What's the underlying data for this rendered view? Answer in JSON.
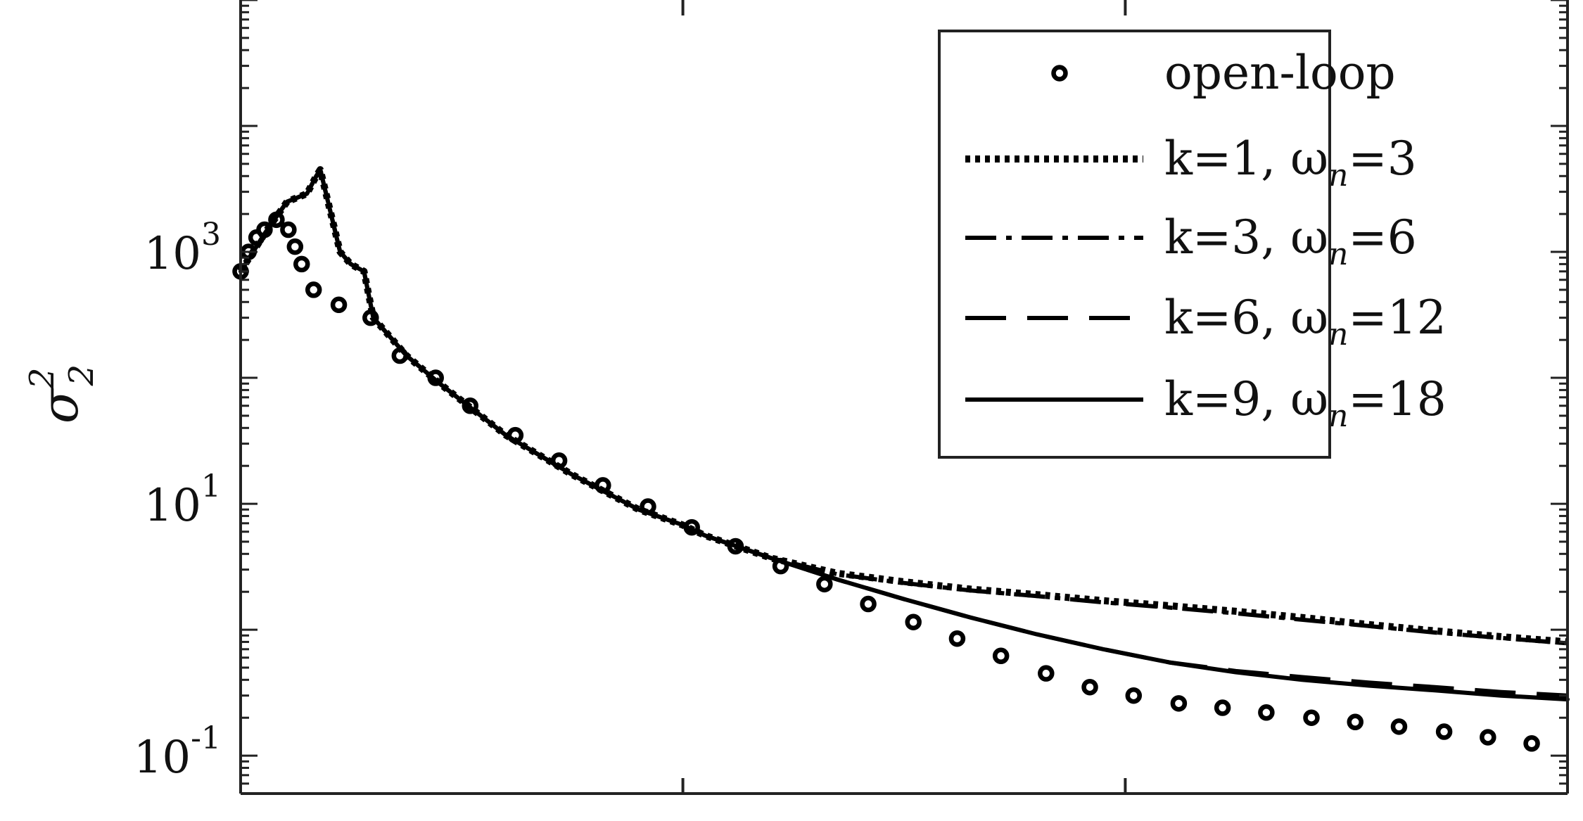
{
  "chart_data": {
    "type": "line",
    "title": "",
    "xlabel": "",
    "ylabel": "σ",
    "ylabel_superscript": "2",
    "ylabel_subscript": "2",
    "yscale": "log",
    "xlim": [
      0,
      1
    ],
    "ylim": [
      0.05,
      100000
    ],
    "xticks": [
      0,
      0.3333,
      0.6667,
      1
    ],
    "yticks": [
      {
        "value": 1000,
        "base": "10",
        "exp": "3"
      },
      {
        "value": 10,
        "base": "10",
        "exp": "1"
      },
      {
        "value": 0.1,
        "base": "10",
        "exp": "-1"
      }
    ],
    "grid": false,
    "legend_position": "top-right",
    "series": [
      {
        "name": "open-loop",
        "style": "markers",
        "x": [
          0.0,
          0.006,
          0.012,
          0.018,
          0.027,
          0.036,
          0.041,
          0.046,
          0.055,
          0.074,
          0.098,
          0.12,
          0.147,
          0.173,
          0.207,
          0.24,
          0.273,
          0.307,
          0.34,
          0.373,
          0.407,
          0.44,
          0.473,
          0.507,
          0.54,
          0.573,
          0.607,
          0.64,
          0.673,
          0.707,
          0.74,
          0.773,
          0.807,
          0.84,
          0.873,
          0.907,
          0.94,
          0.973
        ],
        "y": [
          700,
          1000,
          1300,
          1500,
          1800,
          1500,
          1100,
          800,
          500,
          380,
          300,
          150,
          100,
          60,
          35,
          22,
          14,
          9.5,
          6.5,
          4.6,
          3.2,
          2.3,
          1.6,
          1.15,
          0.85,
          0.62,
          0.45,
          0.35,
          0.3,
          0.26,
          0.24,
          0.22,
          0.2,
          0.185,
          0.17,
          0.155,
          0.14,
          0.125
        ]
      },
      {
        "name": "k=1, ω",
        "subscript": "n",
        "value_text": "=3",
        "style": "dotted",
        "x": [
          0.0,
          0.02,
          0.035,
          0.05,
          0.057,
          0.06,
          0.075,
          0.083,
          0.093,
          0.1,
          0.125,
          0.15,
          0.2,
          0.25,
          0.3,
          0.333,
          0.35,
          0.4,
          0.45,
          0.5,
          0.55,
          0.6,
          0.65,
          0.7,
          0.75,
          0.8,
          0.85,
          0.9,
          0.95,
          1.0
        ],
        "y": [
          700,
          1500,
          2500,
          2900,
          4000,
          4500,
          1000,
          800,
          700,
          300,
          150,
          90,
          35,
          17,
          9,
          6.8,
          5.6,
          3.7,
          2.8,
          2.4,
          2.1,
          1.9,
          1.7,
          1.55,
          1.4,
          1.25,
          1.1,
          0.98,
          0.88,
          0.8
        ]
      },
      {
        "name": "k=3, ω",
        "subscript": "n",
        "value_text": "=6",
        "style": "dashdot",
        "x": [
          0.0,
          0.02,
          0.035,
          0.05,
          0.057,
          0.06,
          0.075,
          0.083,
          0.093,
          0.1,
          0.125,
          0.15,
          0.2,
          0.25,
          0.3,
          0.333,
          0.35,
          0.4,
          0.45,
          0.5,
          0.55,
          0.6,
          0.65,
          0.7,
          0.75,
          0.8,
          0.85,
          0.9,
          0.95,
          1.0
        ],
        "y": [
          700,
          1500,
          2500,
          2900,
          4000,
          4500,
          1000,
          800,
          700,
          300,
          150,
          90,
          35,
          17,
          9,
          6.8,
          5.6,
          3.7,
          2.75,
          2.35,
          2.05,
          1.85,
          1.65,
          1.5,
          1.35,
          1.2,
          1.07,
          0.95,
          0.86,
          0.78
        ]
      },
      {
        "name": "k=6, ω",
        "subscript": "n",
        "value_text": "=12",
        "style": "dashed",
        "x": [
          0.0,
          0.02,
          0.035,
          0.05,
          0.057,
          0.06,
          0.075,
          0.083,
          0.093,
          0.1,
          0.125,
          0.15,
          0.2,
          0.25,
          0.3,
          0.333,
          0.35,
          0.4,
          0.45,
          0.5,
          0.55,
          0.6,
          0.65,
          0.7,
          0.75,
          0.8,
          0.85,
          0.9,
          0.95,
          1.0
        ],
        "y": [
          700,
          1500,
          2500,
          2900,
          4000,
          4500,
          1000,
          800,
          700,
          300,
          150,
          90,
          35,
          17,
          9,
          6.8,
          5.6,
          3.7,
          2.5,
          1.75,
          1.25,
          0.92,
          0.7,
          0.55,
          0.47,
          0.42,
          0.38,
          0.35,
          0.32,
          0.3
        ]
      },
      {
        "name": "k=9, ω",
        "subscript": "n",
        "value_text": "=18",
        "style": "solid",
        "x": [
          0.0,
          0.02,
          0.035,
          0.05,
          0.057,
          0.06,
          0.075,
          0.083,
          0.093,
          0.1,
          0.125,
          0.15,
          0.2,
          0.25,
          0.3,
          0.333,
          0.35,
          0.4,
          0.45,
          0.5,
          0.55,
          0.6,
          0.65,
          0.7,
          0.75,
          0.8,
          0.85,
          0.9,
          0.95,
          1.0
        ],
        "y": [
          700,
          1500,
          2500,
          2900,
          4000,
          4500,
          1000,
          800,
          700,
          300,
          150,
          90,
          35,
          17,
          9,
          6.8,
          5.6,
          3.7,
          2.5,
          1.75,
          1.25,
          0.92,
          0.7,
          0.55,
          0.46,
          0.4,
          0.36,
          0.33,
          0.3,
          0.28
        ]
      }
    ]
  }
}
